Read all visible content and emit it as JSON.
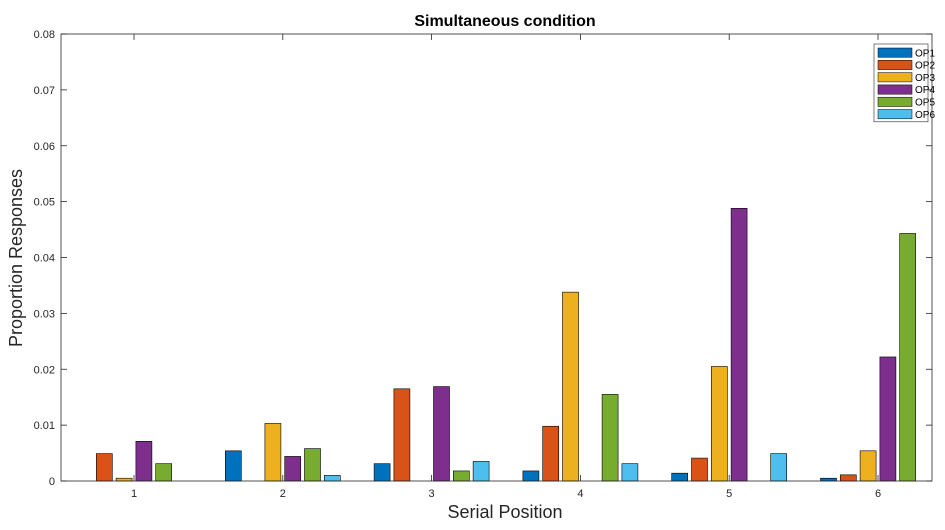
{
  "chart_data": {
    "type": "bar",
    "title": "Simultaneous condition",
    "xlabel": "Serial Position",
    "ylabel": "Proportion Responses",
    "categories": [
      "1",
      "2",
      "3",
      "4",
      "5",
      "6"
    ],
    "ylim": [
      0,
      0.08
    ],
    "yticks": [
      "0",
      "0.01",
      "0.02",
      "0.03",
      "0.04",
      "0.05",
      "0.06",
      "0.07",
      "0.08"
    ],
    "grid": false,
    "legend_position": "top-right",
    "series": [
      {
        "name": "OP1",
        "color": "#0072BD",
        "values": [
          0,
          0.0054,
          0.0031,
          0.0018,
          0.0014,
          0.0005
        ]
      },
      {
        "name": "OP2",
        "color": "#D95319",
        "values": [
          0.0049,
          0,
          0.0165,
          0.0098,
          0.0041,
          0.0011
        ]
      },
      {
        "name": "OP3",
        "color": "#EDB120",
        "values": [
          0.0005,
          0.0103,
          0,
          0.0338,
          0.0205,
          0.0054
        ]
      },
      {
        "name": "OP4",
        "color": "#7E2F8E",
        "values": [
          0.0071,
          0.0044,
          0.0169,
          0,
          0.0488,
          0.0222
        ]
      },
      {
        "name": "OP5",
        "color": "#77AC30",
        "values": [
          0.0031,
          0.0058,
          0.0018,
          0.0155,
          0,
          0.0443
        ]
      },
      {
        "name": "OP6",
        "color": "#4DBEEE",
        "values": [
          0,
          0.001,
          0.0035,
          0.0031,
          0.0049,
          0
        ]
      }
    ]
  }
}
